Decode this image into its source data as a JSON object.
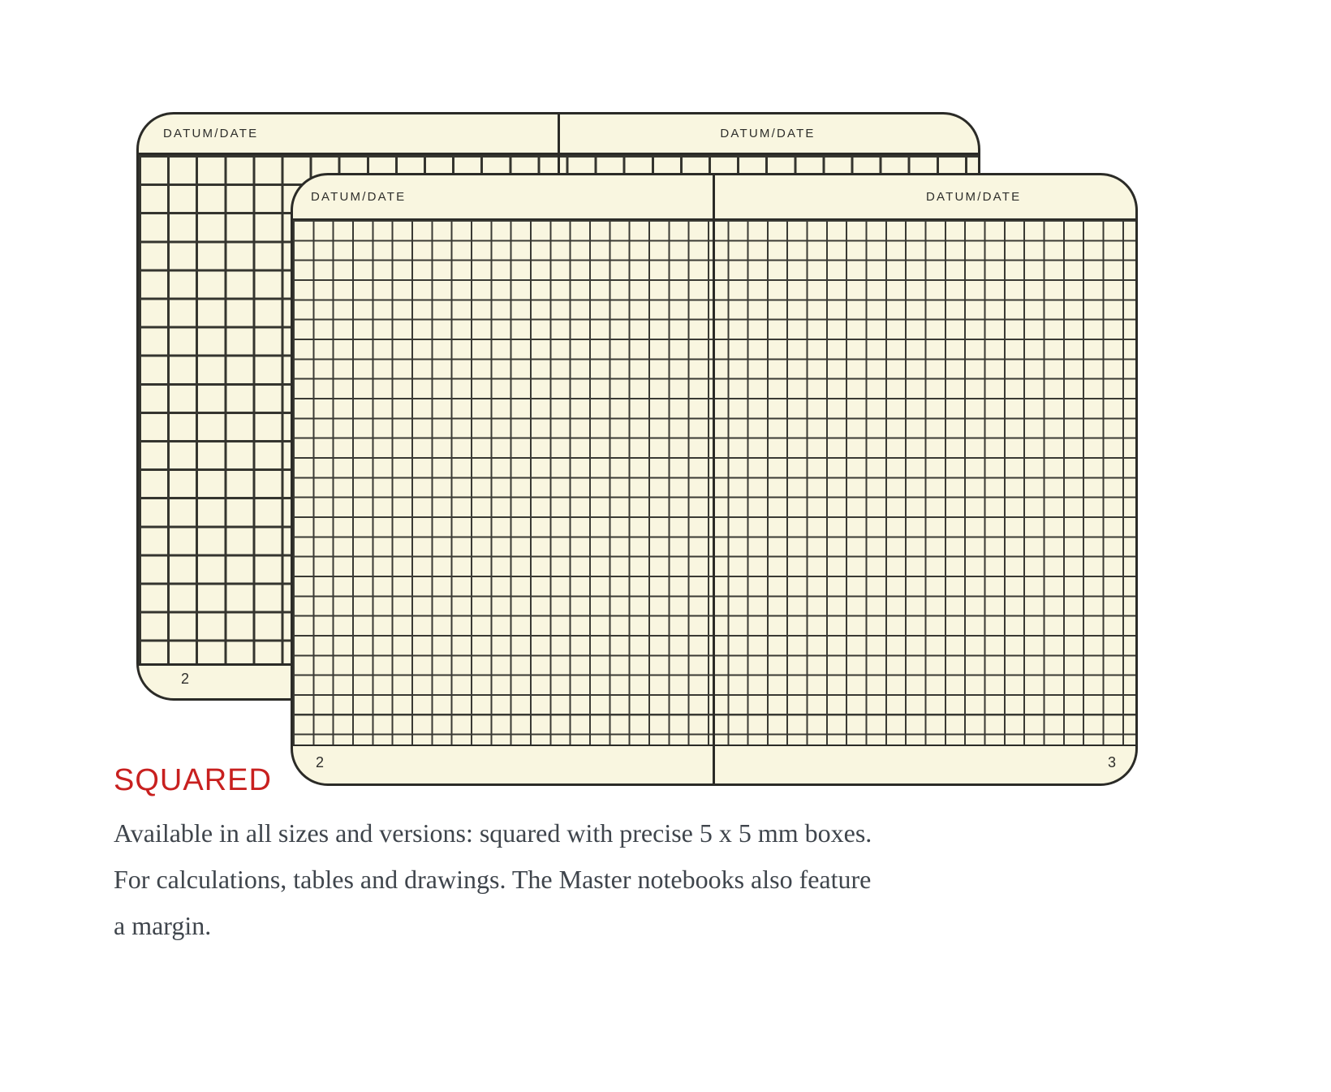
{
  "illustration": {
    "back_spread": {
      "left_page": {
        "header_label": "DATUM/DATE"
      },
      "right_page": {
        "header_label": "DATUM/DATE"
      },
      "page_number": "2"
    },
    "front_spread": {
      "left_page": {
        "header_label": "DATUM/DATE",
        "page_number": "2"
      },
      "right_page": {
        "header_label": "DATUM/DATE",
        "page_number": "3"
      }
    }
  },
  "caption": {
    "heading": "SQUARED",
    "lines": [
      "Available in all sizes and versions: squared with precise 5 x 5 mm boxes.",
      "For calculations, tables and drawings. The Master notebooks also feature",
      "a margin."
    ]
  },
  "colors": {
    "background": "#ffffff",
    "paper_cream": "#f9f6e0",
    "grid_line": "#35352f",
    "page_border": "#2b2b27",
    "heading_red": "#c8201f",
    "body_text": "#3f454c"
  }
}
